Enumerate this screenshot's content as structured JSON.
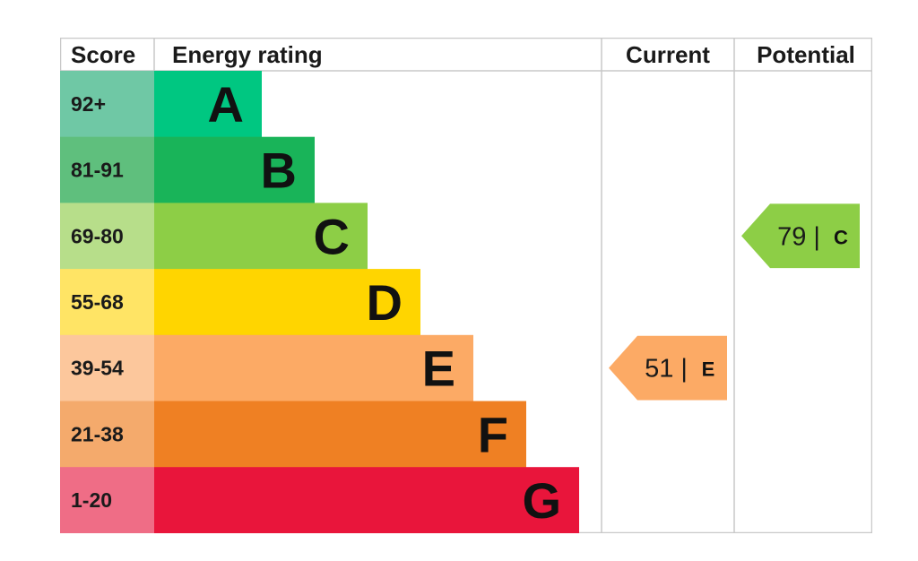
{
  "headers": {
    "score": "Score",
    "energy_rating": "Energy rating",
    "current": "Current",
    "potential": "Potential"
  },
  "chart_data": {
    "type": "bar",
    "title": "",
    "bands": [
      {
        "letter": "A",
        "score_label": "92+",
        "min": 92,
        "max": 100,
        "bar_color": "#00c781",
        "score_color": "#6fc8a5"
      },
      {
        "letter": "B",
        "score_label": "81-91",
        "min": 81,
        "max": 91,
        "bar_color": "#19b459",
        "score_color": "#5fbf7d"
      },
      {
        "letter": "C",
        "score_label": "69-80",
        "min": 69,
        "max": 80,
        "bar_color": "#8dce46",
        "score_color": "#b7de8a"
      },
      {
        "letter": "D",
        "score_label": "55-68",
        "min": 55,
        "max": 68,
        "bar_color": "#ffd500",
        "score_color": "#ffe465"
      },
      {
        "letter": "E",
        "score_label": "39-54",
        "min": 39,
        "max": 54,
        "bar_color": "#fcaa65",
        "score_color": "#fcc79c"
      },
      {
        "letter": "F",
        "score_label": "21-38",
        "min": 21,
        "max": 38,
        "bar_color": "#ef8023",
        "score_color": "#f4aa6c"
      },
      {
        "letter": "G",
        "score_label": "1-20",
        "min": 1,
        "max": 20,
        "bar_color": "#e9153b",
        "score_color": "#ef6d86"
      }
    ],
    "current": {
      "value": 51,
      "separator": "|",
      "band": "E",
      "color": "#fcaa65"
    },
    "potential": {
      "value": 79,
      "separator": "|",
      "band": "C",
      "color": "#8dce46"
    },
    "grid_color": "#c8c8c8"
  }
}
